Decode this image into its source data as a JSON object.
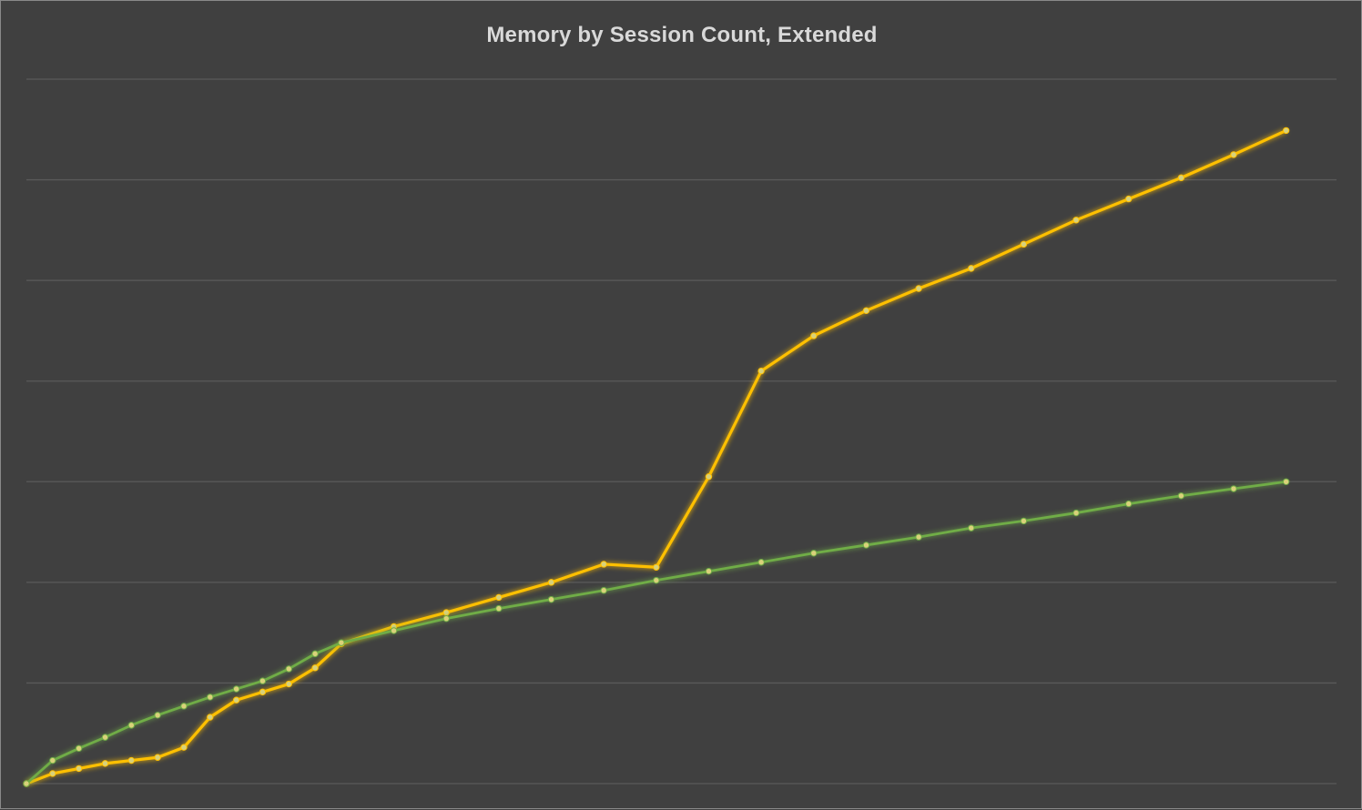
{
  "chart_data": {
    "type": "line",
    "title": "Memory by Session Count, Extended",
    "xlabel": "",
    "ylabel": "",
    "grid": true,
    "gridline_count": 8,
    "ylim": [
      0,
      7
    ],
    "x": [
      0,
      1,
      2,
      3,
      4,
      5,
      6,
      7,
      8,
      9,
      10,
      11,
      12,
      14,
      16,
      18,
      20,
      22,
      24,
      26,
      28,
      30,
      32,
      34,
      36,
      38,
      40,
      42,
      44,
      46,
      48
    ],
    "series": [
      {
        "color": "#ffc000",
        "values": [
          0,
          0.1,
          0.15,
          0.2,
          0.23,
          0.26,
          0.36,
          0.66,
          0.83,
          0.91,
          0.99,
          1.15,
          1.39,
          1.56,
          1.7,
          1.85,
          2.0,
          2.18,
          2.15,
          3.05,
          4.1,
          4.45,
          4.7,
          4.92,
          5.12,
          5.36,
          5.6,
          5.81,
          6.02,
          6.25,
          6.49
        ]
      },
      {
        "color": "#70ad47",
        "values": [
          0,
          0.23,
          0.35,
          0.46,
          0.58,
          0.68,
          0.77,
          0.86,
          0.94,
          1.02,
          1.14,
          1.29,
          1.4,
          1.52,
          1.64,
          1.74,
          1.83,
          1.92,
          2.02,
          2.11,
          2.2,
          2.29,
          2.37,
          2.45,
          2.54,
          2.61,
          2.69,
          2.78,
          2.86,
          2.93,
          3.0
        ]
      }
    ]
  }
}
